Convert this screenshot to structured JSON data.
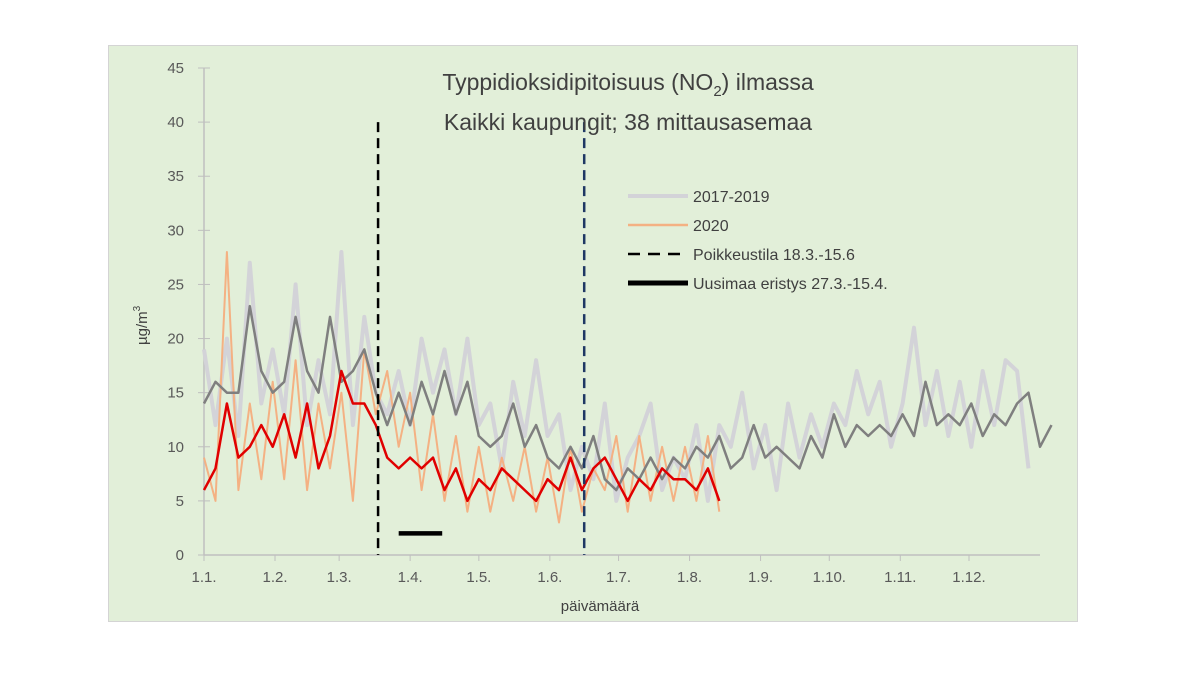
{
  "chart_data": {
    "type": "line",
    "title_line1": "Typpidioksidipitoisuus  (NO",
    "title_sub": "2",
    "title_line1_end": ") ilmassa",
    "title_line2": "Kaikki kaupungit; 38 mittausasemaa",
    "xlabel": "päivämäärä",
    "ylabel": "µg/m",
    "ylabel_sup": "3",
    "ylim": [
      0,
      45
    ],
    "yticks": [
      0,
      5,
      10,
      15,
      20,
      25,
      30,
      35,
      40,
      45
    ],
    "xlim_days": [
      0,
      365
    ],
    "xticks": [
      {
        "label": "1.1.",
        "day": 0
      },
      {
        "label": "1.2.",
        "day": 31
      },
      {
        "label": "1.3.",
        "day": 59
      },
      {
        "label": "1.4.",
        "day": 90
      },
      {
        "label": "1.5.",
        "day": 120
      },
      {
        "label": "1.6.",
        "day": 151
      },
      {
        "label": "1.7.",
        "day": 181
      },
      {
        "label": "1.8.",
        "day": 212
      },
      {
        "label": "1.9.",
        "day": 243
      },
      {
        "label": "1.10.",
        "day": 273
      },
      {
        "label": "1.11.",
        "day": 304
      },
      {
        "label": "1.12.",
        "day": 334
      }
    ],
    "legend": [
      {
        "label": "2017-2019",
        "color": "#d3d3d8",
        "style": "solid"
      },
      {
        "label": "2020",
        "color": "#f4b183",
        "style": "solid"
      },
      {
        "label": "Poikkeustila 18.3.-15.6",
        "color": "#000000",
        "style": "dashed"
      },
      {
        "label": "Uusimaa eristys 27.3.-15.4.",
        "color": "#000000",
        "style": "thick"
      }
    ],
    "legend_placement": "right",
    "vlines": [
      {
        "day": 76,
        "color": "#000000",
        "name": "poikkeustila-start"
      },
      {
        "day": 166,
        "color": "#1f3864",
        "name": "poikkeustila-end"
      }
    ],
    "isolation_bar": {
      "start_day": 85,
      "end_day": 104,
      "y": 2
    },
    "step_days": 5,
    "series": [
      {
        "name": "2017-2019 daily",
        "color": "#d3d3d8",
        "width": 4,
        "values": [
          19,
          12,
          20,
          11,
          27,
          14,
          19,
          13,
          25,
          12,
          18,
          13,
          28,
          12,
          22,
          15,
          13,
          17,
          12,
          20,
          15,
          19,
          13,
          20,
          12,
          14,
          8,
          16,
          11,
          18,
          11,
          13,
          6,
          10,
          7,
          14,
          5,
          9,
          11,
          14,
          6,
          9,
          7,
          12,
          5,
          12,
          10,
          15,
          8,
          12,
          6,
          14,
          9,
          13,
          10,
          14,
          12,
          17,
          13,
          16,
          10,
          14,
          21,
          12,
          17,
          11,
          16,
          10,
          17,
          12,
          18,
          17,
          8
        ]
      },
      {
        "name": "2020 daily",
        "color": "#f4b183",
        "width": 2,
        "values": [
          9,
          5,
          28,
          6,
          14,
          7,
          16,
          7,
          18,
          6,
          14,
          8,
          15,
          5,
          19,
          13,
          17,
          10,
          15,
          6,
          13,
          5,
          11,
          4,
          10,
          4,
          9,
          5,
          10,
          4,
          9,
          3,
          10,
          4,
          8,
          6,
          11,
          4,
          11,
          5,
          10,
          5,
          10,
          5,
          11,
          4
        ]
      },
      {
        "name": "2017-2019 mean",
        "color": "#7f7f7f",
        "width": 2.5,
        "values": [
          14,
          16,
          15,
          15,
          23,
          17,
          15,
          16,
          22,
          17,
          15,
          22,
          16,
          17,
          19,
          15,
          12,
          15,
          12,
          16,
          13,
          17,
          13,
          16,
          11,
          10,
          11,
          14,
          10,
          12,
          9,
          8,
          10,
          8,
          11,
          7,
          6,
          8,
          7,
          9,
          7,
          9,
          8,
          10,
          9,
          11,
          8,
          9,
          12,
          9,
          10,
          9,
          8,
          11,
          9,
          13,
          10,
          12,
          11,
          12,
          11,
          13,
          11,
          16,
          12,
          13,
          12,
          14,
          11,
          13,
          12,
          14,
          15,
          10,
          12
        ]
      },
      {
        "name": "2020 mean",
        "color": "#e00000",
        "width": 2.5,
        "values": [
          6,
          8,
          14,
          9,
          10,
          12,
          10,
          13,
          9,
          14,
          8,
          11,
          17,
          14,
          14,
          12,
          9,
          8,
          9,
          8,
          9,
          6,
          8,
          5,
          7,
          6,
          8,
          7,
          6,
          5,
          7,
          6,
          9,
          6,
          8,
          9,
          7,
          5,
          7,
          6,
          8,
          7,
          7,
          6,
          8,
          5
        ]
      }
    ]
  }
}
